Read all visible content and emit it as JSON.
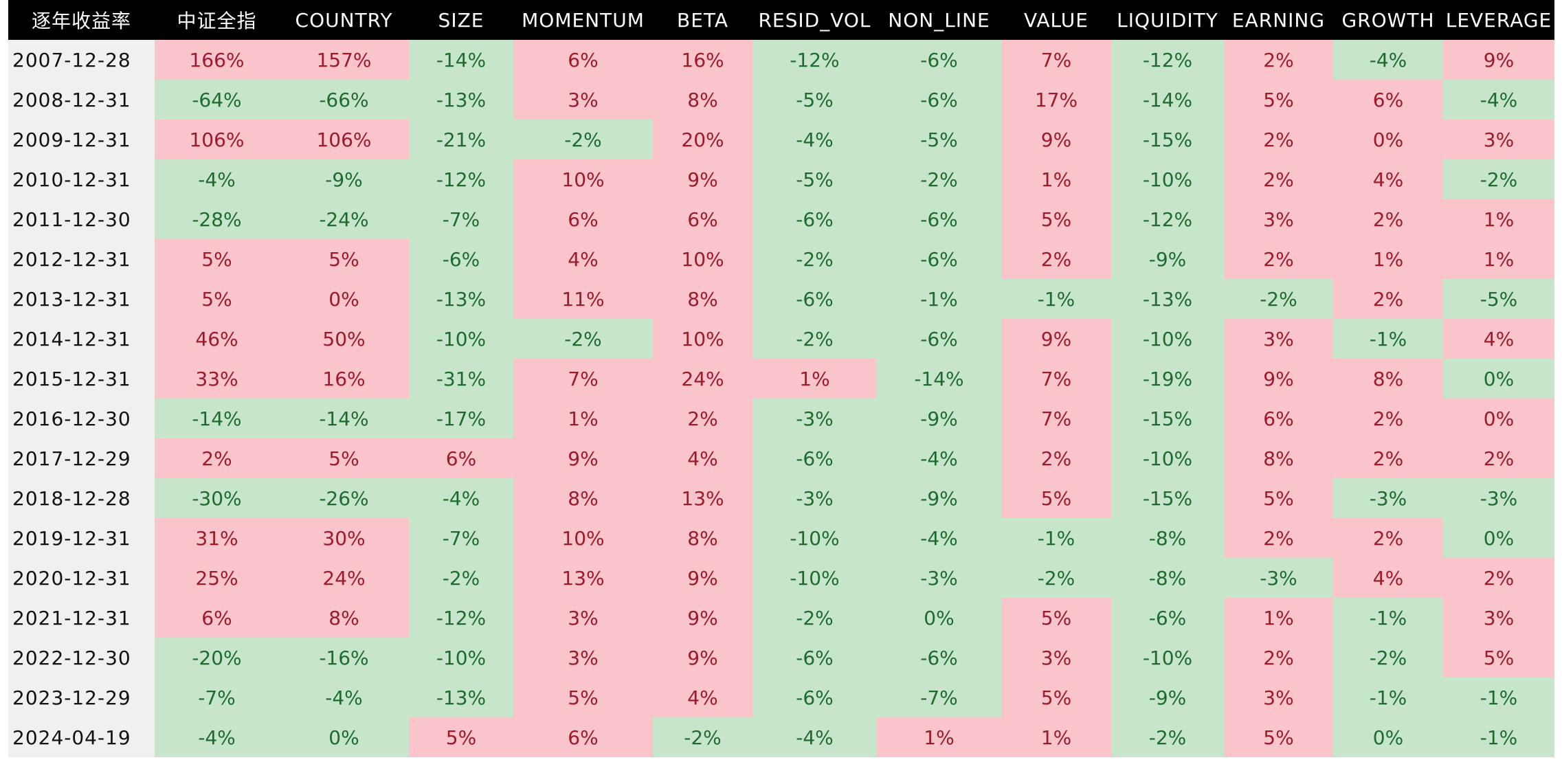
{
  "table": {
    "colors": {
      "header_bg": "#000000",
      "header_text": "#ffffff",
      "date_bg": "#f0f0f2",
      "p_bg": "#f9c4cb",
      "p_text": "#9c1a2a",
      "n_bg": "#c6e5cb",
      "n_text": "#1e6b2e"
    },
    "headers": [
      "逐年收益率",
      "中证全指",
      "COUNTRY",
      "SIZE",
      "MOMENTUM",
      "BETA",
      "RESID_VOL",
      "NON_LINE",
      "VALUE",
      "LIQUIDITY",
      "EARNING",
      "GROWTH",
      "LEVERAGE"
    ],
    "rows": [
      {
        "date": "2007-12-28",
        "cells": [
          "166%",
          "157%",
          "-14%",
          "6%",
          "16%",
          "-12%",
          "-6%",
          "7%",
          "-12%",
          "2%",
          "-4%",
          "9%"
        ],
        "tones": "ppnppnnpnpnp"
      },
      {
        "date": "2008-12-31",
        "cells": [
          "-64%",
          "-66%",
          "-13%",
          "3%",
          "8%",
          "-5%",
          "-6%",
          "17%",
          "-14%",
          "5%",
          "6%",
          "-4%"
        ],
        "tones": "nnnppnnpnppn"
      },
      {
        "date": "2009-12-31",
        "cells": [
          "106%",
          "106%",
          "-21%",
          "-2%",
          "20%",
          "-4%",
          "-5%",
          "9%",
          "-15%",
          "2%",
          "0%",
          "3%"
        ],
        "tones": "ppnnpnnpnppp"
      },
      {
        "date": "2010-12-31",
        "cells": [
          "-4%",
          "-9%",
          "-12%",
          "10%",
          "9%",
          "-5%",
          "-2%",
          "1%",
          "-10%",
          "2%",
          "4%",
          "-2%"
        ],
        "tones": "nnnppnnpnppn"
      },
      {
        "date": "2011-12-30",
        "cells": [
          "-28%",
          "-24%",
          "-7%",
          "6%",
          "6%",
          "-6%",
          "-6%",
          "5%",
          "-12%",
          "3%",
          "2%",
          "1%"
        ],
        "tones": "nnnppnnpnppp"
      },
      {
        "date": "2012-12-31",
        "cells": [
          "5%",
          "5%",
          "-6%",
          "4%",
          "10%",
          "-2%",
          "-6%",
          "2%",
          "-9%",
          "2%",
          "1%",
          "1%"
        ],
        "tones": "ppnppnnpnppp"
      },
      {
        "date": "2013-12-31",
        "cells": [
          "5%",
          "0%",
          "-13%",
          "11%",
          "8%",
          "-6%",
          "-1%",
          "-1%",
          "-13%",
          "-2%",
          "2%",
          "-5%"
        ],
        "tones": "ppnppnnnnnpn"
      },
      {
        "date": "2014-12-31",
        "cells": [
          "46%",
          "50%",
          "-10%",
          "-2%",
          "10%",
          "-2%",
          "-6%",
          "9%",
          "-10%",
          "3%",
          "-1%",
          "4%"
        ],
        "tones": "ppnnpnnpnpnp"
      },
      {
        "date": "2015-12-31",
        "cells": [
          "33%",
          "16%",
          "-31%",
          "7%",
          "24%",
          "1%",
          "-14%",
          "7%",
          "-19%",
          "9%",
          "8%",
          "0%"
        ],
        "tones": "ppnpppnpnppn"
      },
      {
        "date": "2016-12-30",
        "cells": [
          "-14%",
          "-14%",
          "-17%",
          "1%",
          "2%",
          "-3%",
          "-9%",
          "7%",
          "-15%",
          "6%",
          "2%",
          "0%"
        ],
        "tones": "nnnppnnpnppp"
      },
      {
        "date": "2017-12-29",
        "cells": [
          "2%",
          "5%",
          "6%",
          "9%",
          "4%",
          "-6%",
          "-4%",
          "2%",
          "-10%",
          "8%",
          "2%",
          "2%"
        ],
        "tones": "pppppnnpnppp"
      },
      {
        "date": "2018-12-28",
        "cells": [
          "-30%",
          "-26%",
          "-4%",
          "8%",
          "13%",
          "-3%",
          "-9%",
          "5%",
          "-15%",
          "5%",
          "-3%",
          "-3%"
        ],
        "tones": "nnnppnnpnpnn"
      },
      {
        "date": "2019-12-31",
        "cells": [
          "31%",
          "30%",
          "-7%",
          "10%",
          "8%",
          "-10%",
          "-4%",
          "-1%",
          "-8%",
          "2%",
          "2%",
          "0%"
        ],
        "tones": "ppnppnnnnppn"
      },
      {
        "date": "2020-12-31",
        "cells": [
          "25%",
          "24%",
          "-2%",
          "13%",
          "9%",
          "-10%",
          "-3%",
          "-2%",
          "-8%",
          "-3%",
          "4%",
          "2%"
        ],
        "tones": "ppnppnnnnnpp"
      },
      {
        "date": "2021-12-31",
        "cells": [
          "6%",
          "8%",
          "-12%",
          "3%",
          "9%",
          "-2%",
          "0%",
          "5%",
          "-6%",
          "1%",
          "-1%",
          "3%"
        ],
        "tones": "ppnppnnpnpnp"
      },
      {
        "date": "2022-12-30",
        "cells": [
          "-20%",
          "-16%",
          "-10%",
          "3%",
          "9%",
          "-6%",
          "-6%",
          "3%",
          "-10%",
          "2%",
          "-2%",
          "5%"
        ],
        "tones": "nnnppnnpnpnp"
      },
      {
        "date": "2023-12-29",
        "cells": [
          "-7%",
          "-4%",
          "-13%",
          "5%",
          "4%",
          "-6%",
          "-7%",
          "5%",
          "-9%",
          "3%",
          "-1%",
          "-1%"
        ],
        "tones": "nnnppnnpnpnn"
      },
      {
        "date": "2024-04-19",
        "cells": [
          "-4%",
          "0%",
          "5%",
          "6%",
          "-2%",
          "-4%",
          "1%",
          "1%",
          "-2%",
          "5%",
          "0%",
          "-1%"
        ],
        "tones": "nnppnnppnpnn"
      }
    ]
  }
}
